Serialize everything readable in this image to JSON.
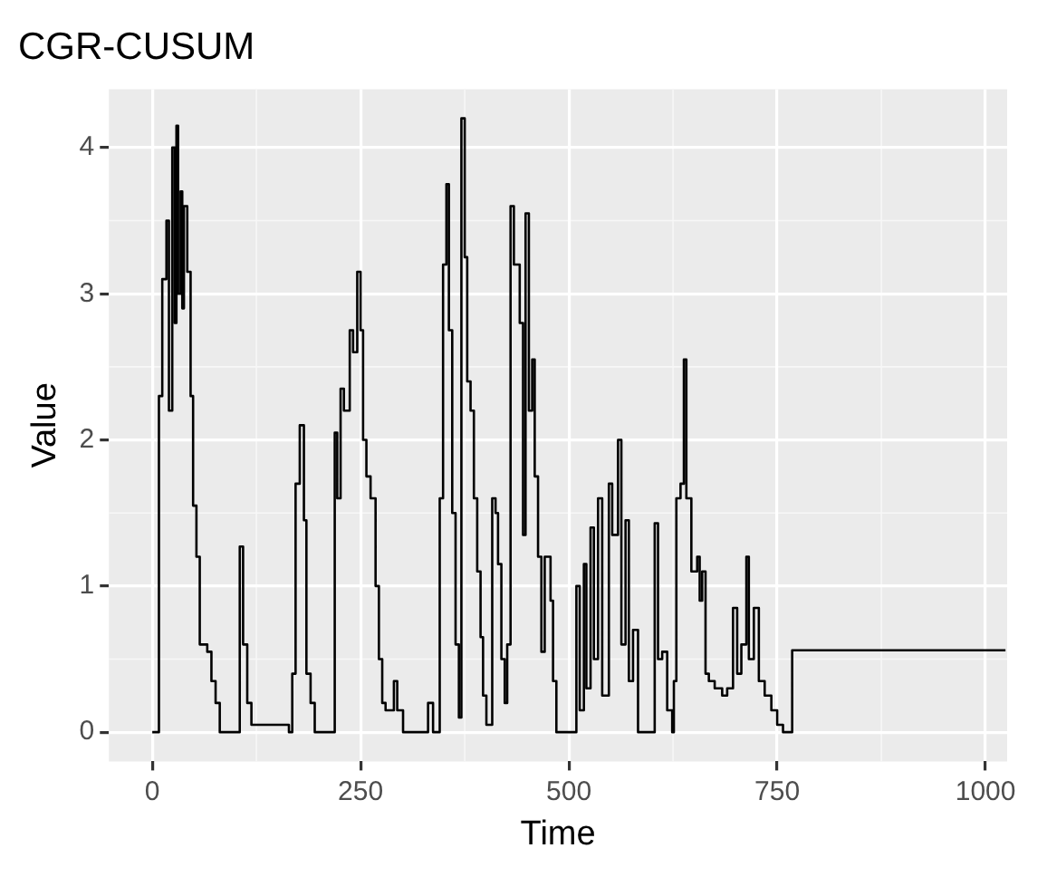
{
  "chart_data": {
    "type": "step",
    "title": "CGR-CUSUM",
    "xlabel": "Time",
    "ylabel": "Value",
    "xlim": [
      -52,
      1026
    ],
    "xticks": [
      0,
      250,
      500,
      750,
      1000
    ],
    "ylim": [
      -0.2,
      4.4
    ],
    "yticks": [
      0,
      1,
      2,
      3,
      4
    ],
    "grid": true,
    "series": [
      {
        "color": "#000000",
        "x": [
          0,
          7,
          8,
          12,
          17,
          20,
          24,
          27,
          29,
          31,
          34,
          36,
          38,
          42,
          46,
          49,
          53,
          57,
          66,
          71,
          76,
          81,
          104,
          105,
          109,
          114,
          119,
          164,
          168,
          172,
          177,
          182,
          185,
          190,
          195,
          219,
          222,
          226,
          230,
          237,
          241,
          246,
          250,
          253,
          257,
          262,
          268,
          272,
          276,
          280,
          290,
          294,
          301,
          331,
          337,
          343,
          345,
          349,
          353,
          356,
          360,
          364,
          368,
          371,
          375,
          378,
          382,
          386,
          390,
          394,
          397,
          401,
          408,
          412,
          415,
          419,
          423,
          426,
          430,
          434,
          441,
          445,
          448,
          452,
          456,
          459,
          463,
          467,
          471,
          478,
          481,
          485,
          493,
          507,
          509,
          513,
          518,
          521,
          526,
          530,
          535,
          540,
          548,
          552,
          559,
          563,
          568,
          572,
          577,
          583,
          601,
          603,
          607,
          612,
          618,
          624,
          626,
          629,
          634,
          638,
          641,
          647,
          654,
          657,
          660,
          664,
          668,
          675,
          684,
          690,
          697,
          702,
          707,
          713,
          716,
          722,
          728,
          735,
          743,
          750,
          757,
          768,
          1024
        ],
        "values": [
          0,
          0,
          2.3,
          3.1,
          3.5,
          2.2,
          4.0,
          2.8,
          4.15,
          3.0,
          3.7,
          2.9,
          3.6,
          3.15,
          2.3,
          1.55,
          1.2,
          0.6,
          0.55,
          0.35,
          0.2,
          0,
          0,
          1.27,
          0.6,
          0.2,
          0.05,
          0,
          0.4,
          1.7,
          2.1,
          1.45,
          0.4,
          0.2,
          0,
          2.05,
          1.6,
          2.35,
          2.2,
          2.75,
          2.6,
          3.15,
          2.75,
          2.0,
          1.75,
          1.6,
          1.0,
          0.5,
          0.2,
          0.15,
          0.35,
          0.15,
          0,
          0.2,
          0,
          0,
          1.6,
          3.2,
          3.75,
          2.75,
          1.5,
          0.6,
          0.1,
          4.2,
          3.25,
          2.4,
          2.2,
          1.6,
          1.1,
          0.65,
          0.25,
          0.05,
          1.6,
          1.5,
          1.15,
          0.5,
          0.2,
          0.6,
          3.6,
          3.2,
          2.8,
          1.35,
          3.55,
          2.2,
          2.55,
          1.75,
          1.2,
          0.55,
          1.2,
          0.9,
          0.35,
          0,
          0,
          0,
          1.0,
          0.15,
          1.15,
          0.3,
          1.4,
          0.5,
          1.6,
          0.25,
          1.7,
          1.35,
          2.0,
          0.6,
          1.45,
          0.35,
          0.7,
          0,
          0,
          1.43,
          0.5,
          0.55,
          0.15,
          0,
          0.35,
          1.6,
          1.7,
          2.55,
          1.6,
          1.1,
          1.2,
          0.9,
          1.1,
          0.4,
          0.35,
          0.3,
          0.25,
          0.3,
          0.85,
          0.4,
          0.6,
          1.2,
          0.5,
          0.85,
          0.35,
          0.25,
          0.15,
          0.05,
          0,
          0.56,
          0.56
        ]
      }
    ]
  }
}
